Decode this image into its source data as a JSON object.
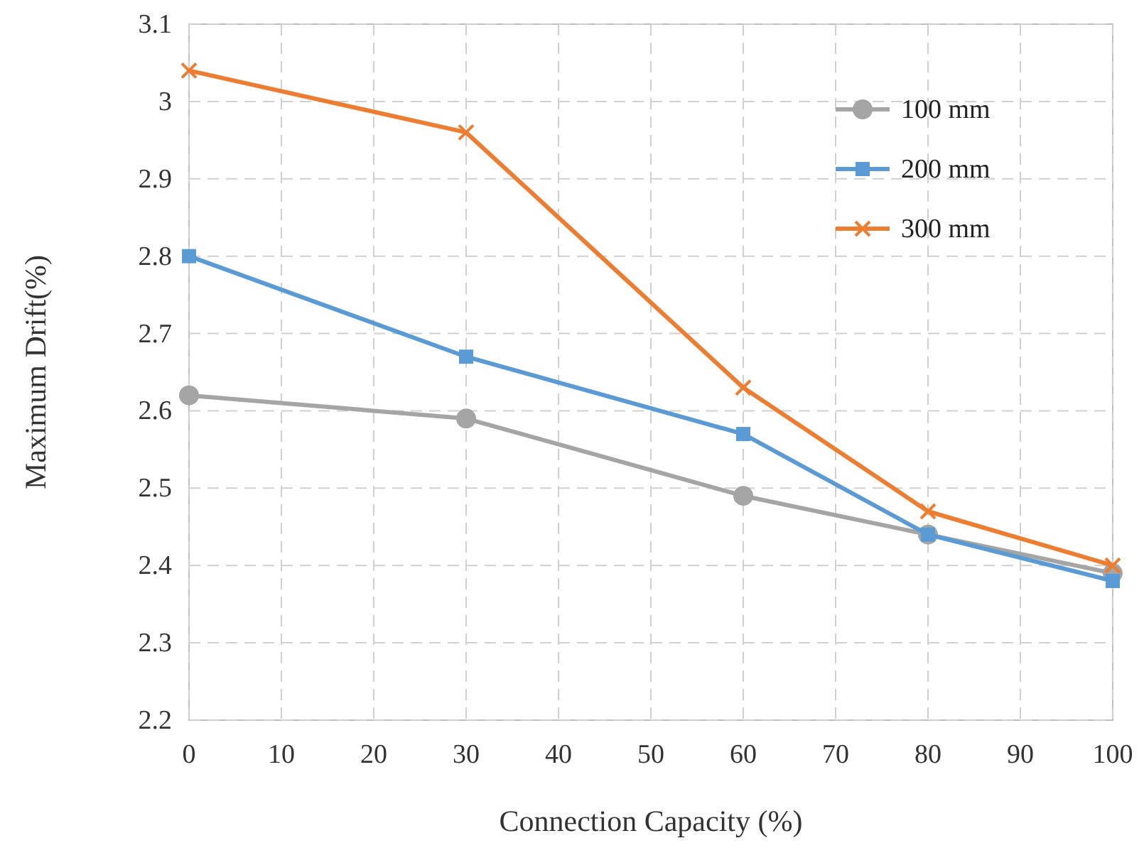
{
  "chart_data": {
    "type": "line",
    "xlabel": "Connection Capacity (%)",
    "ylabel": "Maximum Drift(%)",
    "x": [
      0,
      30,
      60,
      80,
      100
    ],
    "series": [
      {
        "name": "100 mm",
        "color": "#a5a5a5",
        "marker": "circle",
        "values": [
          2.62,
          2.59,
          2.49,
          2.44,
          2.39
        ]
      },
      {
        "name": "200 mm",
        "color": "#5b9bd5",
        "marker": "square",
        "values": [
          2.8,
          2.67,
          2.57,
          2.44,
          2.38
        ]
      },
      {
        "name": "300 mm",
        "color": "#ed7d31",
        "marker": "cross",
        "values": [
          3.04,
          2.96,
          2.63,
          2.47,
          2.4
        ]
      }
    ],
    "xlim": [
      0,
      100
    ],
    "xticks": [
      0,
      10,
      20,
      30,
      40,
      50,
      60,
      70,
      80,
      90,
      100
    ],
    "ylim": [
      2.2,
      3.1
    ],
    "yticks": [
      2.2,
      2.3,
      2.4,
      2.5,
      2.6,
      2.7,
      2.8,
      2.9,
      3,
      3.1
    ],
    "grid": true,
    "legend": "top right",
    "line_style": "solid"
  }
}
